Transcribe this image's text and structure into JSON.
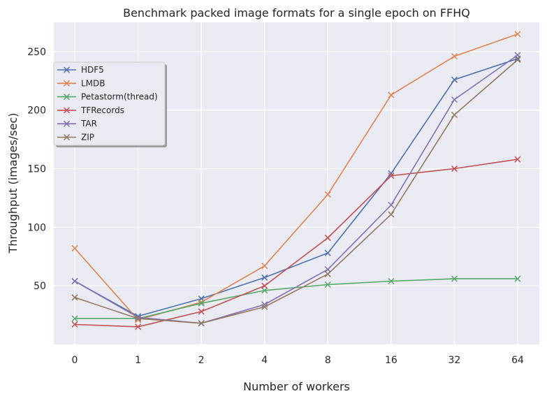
{
  "chart_data": {
    "type": "line",
    "title": "Benchmark packed image formats for a single epoch on FFHQ",
    "xlabel": "Number of workers",
    "ylabel": "Throughput (images/sec)",
    "categories": [
      "0",
      "1",
      "2",
      "4",
      "8",
      "16",
      "32",
      "64"
    ],
    "yticks": [
      "50",
      "100",
      "150",
      "200",
      "250"
    ],
    "ylim": [
      0,
      275
    ],
    "grid": true,
    "legend_position": "upper-left",
    "marker": "x",
    "series": [
      {
        "name": "HDF5",
        "color": "#4c72b0",
        "values": [
          54,
          24,
          39,
          57,
          78,
          146,
          226,
          244
        ]
      },
      {
        "name": "LMDB",
        "color": "#dd8452",
        "values": [
          82,
          21,
          36,
          67,
          128,
          213,
          246,
          265
        ]
      },
      {
        "name": "Petastorm(thread)",
        "color": "#55a868",
        "values": [
          22,
          22,
          35,
          46,
          51,
          54,
          56,
          56
        ]
      },
      {
        "name": "TFRecords",
        "color": "#c44e52",
        "values": [
          17,
          15,
          28,
          50,
          91,
          144,
          150,
          158
        ]
      },
      {
        "name": "TAR",
        "color": "#8172b3",
        "values": [
          54,
          23,
          18,
          34,
          64,
          119,
          209,
          247
        ]
      },
      {
        "name": "ZIP",
        "color": "#937860",
        "values": [
          40,
          22,
          18,
          32,
          60,
          111,
          196,
          243
        ]
      }
    ]
  }
}
